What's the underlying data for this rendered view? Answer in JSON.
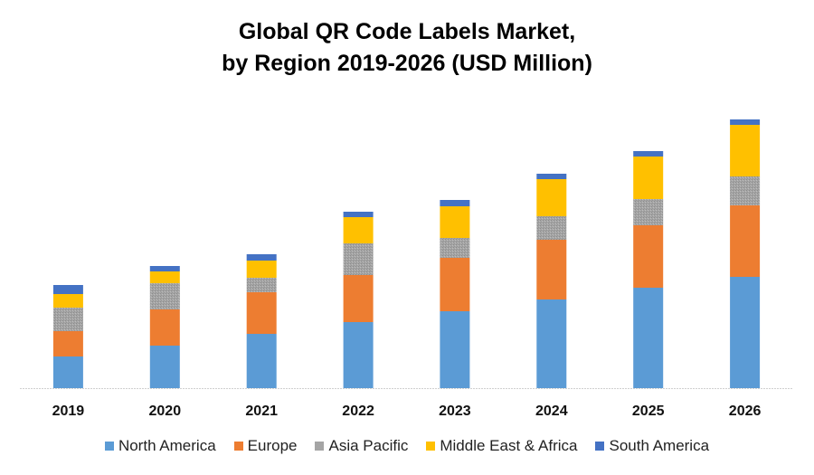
{
  "chart_data": {
    "type": "bar",
    "stacked": true,
    "title": "Global QR Code Labels Market, by Region 2019-2026 (USD Million)",
    "title_lines": [
      "Global QR Code Labels Market,",
      "by Region 2019-2026 (USD Million)"
    ],
    "xlabel": "",
    "ylabel": "",
    "y_axis_visible": false,
    "grid": false,
    "legend_position": "bottom",
    "categories": [
      "2019",
      "2020",
      "2021",
      "2022",
      "2023",
      "2024",
      "2025",
      "2026"
    ],
    "ylim": [
      0,
      300
    ],
    "series": [
      {
        "name": "North America",
        "color": "#5B9BD5",
        "values": [
          35,
          47,
          60,
          73,
          85,
          98,
          111,
          123
        ]
      },
      {
        "name": "Europe",
        "color": "#ED7D31",
        "values": [
          28,
          40,
          46,
          52,
          59,
          66,
          69,
          79
        ]
      },
      {
        "name": "Asia Pacific",
        "color": "#A5A5A5",
        "values": [
          26,
          29,
          16,
          35,
          22,
          26,
          29,
          32
        ]
      },
      {
        "name": "Middle East & Africa",
        "color": "#FFC000",
        "values": [
          15,
          13,
          19,
          29,
          35,
          41,
          47,
          57
        ]
      },
      {
        "name": "South America",
        "color": "#4472C4",
        "values": [
          10,
          6,
          7,
          6,
          7,
          6,
          6,
          6
        ]
      }
    ],
    "note": "No y-axis scale shown; values are relative estimates read from bar heights."
  }
}
